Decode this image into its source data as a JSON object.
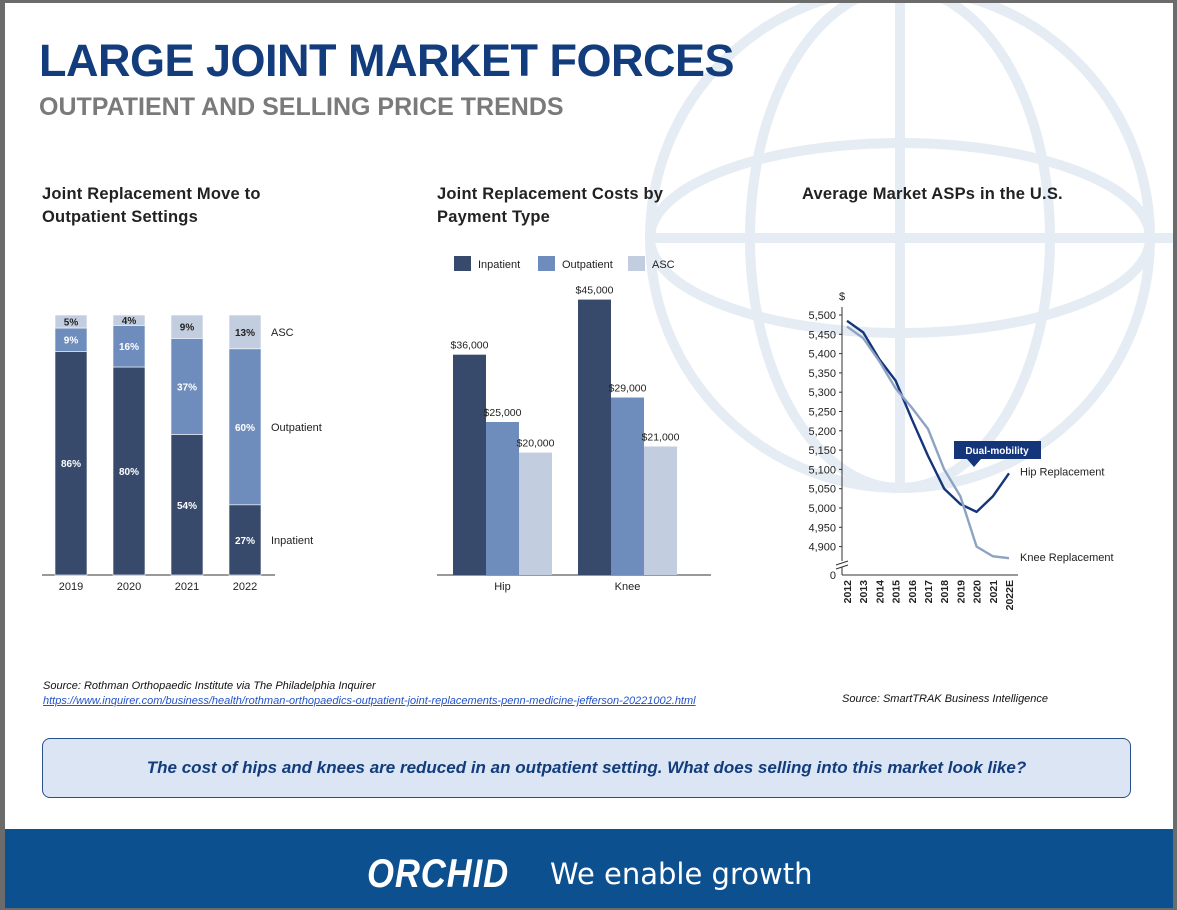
{
  "header": {
    "title": "LARGE JOINT MARKET FORCES",
    "subtitle": "OUTPATIENT AND SELLING PRICE TRENDS"
  },
  "colors": {
    "title": "#123c7c",
    "inpatient": "#374a6c",
    "outpatient": "#6f8dbc",
    "asc": "#c3cde0",
    "hip_line": "#14357a",
    "knee_line": "#8ea3c4",
    "footer": "#0d5090"
  },
  "chart_data": [
    {
      "type": "bar",
      "stacked": true,
      "title": "Joint Replacement Move to Outpatient Settings",
      "categories": [
        "2019",
        "2020",
        "2021",
        "2022"
      ],
      "series": [
        {
          "name": "Inpatient",
          "values": [
            86,
            80,
            54,
            27
          ],
          "labels": [
            "86%",
            "80%",
            "54%",
            "27%"
          ]
        },
        {
          "name": "Outpatient",
          "values": [
            9,
            16,
            37,
            60
          ],
          "labels": [
            "9%",
            "16%",
            "37%",
            "60%"
          ]
        },
        {
          "name": "ASC",
          "values": [
            5,
            4,
            9,
            13
          ],
          "labels": [
            "5%",
            "4%",
            "9%",
            "13%"
          ]
        }
      ],
      "legend_placement": "right (labels beside last bar)"
    },
    {
      "type": "bar",
      "title": "Joint Replacement Costs by Payment Type",
      "categories": [
        "Hip",
        "Knee"
      ],
      "series": [
        {
          "name": "Inpatient",
          "values": [
            36000,
            45000
          ],
          "labels": [
            "$36,000",
            "$45,000"
          ]
        },
        {
          "name": "Outpatient",
          "values": [
            25000,
            29000
          ],
          "labels": [
            "$25,000",
            "$29,000"
          ]
        },
        {
          "name": "ASC",
          "values": [
            20000,
            21000
          ],
          "labels": [
            "$20,000",
            "$21,000"
          ]
        }
      ],
      "ylim": [
        0,
        50000
      ],
      "legend_placement": "top"
    },
    {
      "type": "line",
      "title": "Average Market ASPs in the U.S.",
      "ylabel": "$",
      "x": [
        "2012",
        "2013",
        "2014",
        "2015",
        "2016",
        "2017",
        "2018",
        "2019",
        "2020",
        "2021",
        "2022E"
      ],
      "y_ticks": [
        "5,500",
        "5,450",
        "5,400",
        "5,350",
        "5,300",
        "5,250",
        "5,200",
        "5,150",
        "5,100",
        "5,050",
        "5,000",
        "4,950",
        "4,900"
      ],
      "y_zero_label": "0",
      "ylim": [
        4850,
        5500
      ],
      "axis_break": true,
      "series": [
        {
          "name": "Hip Replacement",
          "values": [
            5485,
            5455,
            5385,
            5330,
            5230,
            5135,
            5050,
            5010,
            4990,
            5030,
            5090
          ]
        },
        {
          "name": "Knee Replacement",
          "values": [
            5470,
            5440,
            5380,
            5310,
            5260,
            5205,
            5100,
            5030,
            4900,
            4875,
            4870
          ]
        }
      ],
      "annotation": "Dual-mobility"
    }
  ],
  "sources": {
    "left_line1": "Source: Rothman Orthopaedic Institute via The Philadelphia Inquirer",
    "left_link": "https://www.inquirer.com/business/health/rothman-orthopaedics-outpatient-joint-replacements-penn-medicine-jefferson-20221002.html",
    "right": "Source: SmartTRAK Business Intelligence"
  },
  "callout": "The cost of hips and knees are reduced in an outpatient setting. What does selling into this market look like?",
  "footer": {
    "logo_text": "ORCHID",
    "tagline": "We enable growth"
  }
}
